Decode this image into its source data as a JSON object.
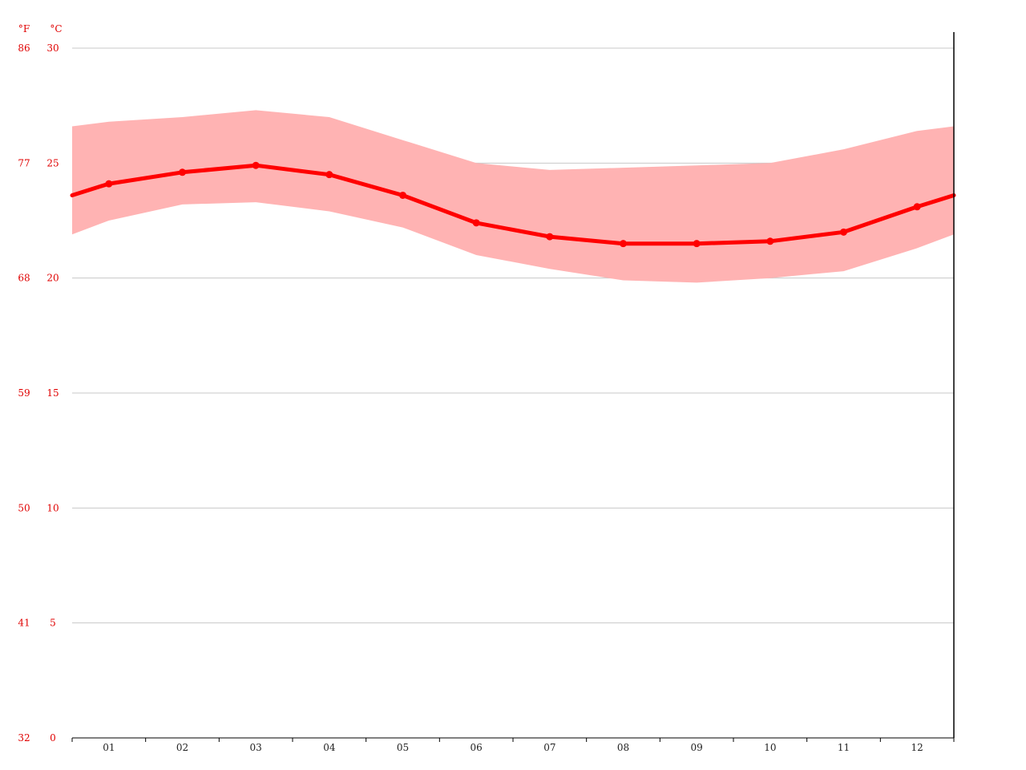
{
  "chart_data": {
    "type": "line",
    "title": "",
    "xlabel": "",
    "ylabel": "",
    "unit_f": "°F",
    "unit_c": "°C",
    "categories": [
      "01",
      "02",
      "03",
      "04",
      "05",
      "06",
      "07",
      "08",
      "09",
      "10",
      "11",
      "12"
    ],
    "ylim": [
      0,
      30
    ],
    "y_ticks_c": [
      "0",
      "5",
      "10",
      "15",
      "20",
      "25",
      "30"
    ],
    "y_ticks_f": [
      "32",
      "41",
      "50",
      "59",
      "68",
      "77",
      "86"
    ],
    "grid": true,
    "series": [
      {
        "kind": "mean",
        "values": [
          24.1,
          24.6,
          24.9,
          24.5,
          23.6,
          22.4,
          21.8,
          21.5,
          21.5,
          21.6,
          22.0,
          23.1
        ]
      },
      {
        "kind": "max",
        "values": [
          26.8,
          27.0,
          27.3,
          27.0,
          26.0,
          25.0,
          24.7,
          24.8,
          24.9,
          25.0,
          25.6,
          26.4
        ]
      },
      {
        "kind": "min",
        "values": [
          22.5,
          23.2,
          23.3,
          22.9,
          22.2,
          21.0,
          20.4,
          19.9,
          19.8,
          20.0,
          20.3,
          21.3
        ]
      }
    ],
    "colors": {
      "line": "#ff0000",
      "band": "#ffb3b3",
      "grid": "#c8c8c8",
      "axis": "#000000",
      "y_labels": "#e00000",
      "x_labels": "#222222"
    }
  }
}
